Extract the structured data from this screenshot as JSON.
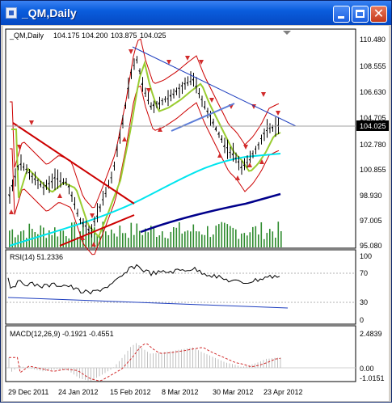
{
  "window": {
    "title": "_QM,Daily"
  },
  "main_panel": {
    "header": "_QM,Daily",
    "ohlc": [
      "104.175",
      "104.200",
      "103.875",
      "104.025"
    ],
    "price_ticks": [
      "110.480",
      "108.555",
      "106.630",
      "104.705",
      "102.780",
      "100.855",
      "98.930",
      "97.005",
      "95.080"
    ],
    "last_price": "104.025"
  },
  "rsi_panel": {
    "header": "RSI(14) 51.2336",
    "ticks": [
      "100",
      "70",
      "30",
      "0"
    ]
  },
  "macd_panel": {
    "header": "MACD(12,26,9) -0.1921 -0.4551",
    "ticks": [
      "2.4839",
      "0.00",
      "-1.0151"
    ]
  },
  "time_axis": [
    "29 Dec 2011",
    "24 Jan 2012",
    "15 Feb 2012",
    "8 Mar 2012",
    "30 Mar 2012",
    "23 Apr 2012"
  ],
  "colors": {
    "ma_fast": "#9acd32",
    "ma_mid": "#00e5ee",
    "ma_slow": "#00008b",
    "bands": "#cc0000",
    "fractals": "#d12b2b",
    "rsi_line": "#000000",
    "macd_main": "#c0c0c0",
    "macd_signal": "#d12b2b",
    "volume": "#2e8b2e"
  }
}
